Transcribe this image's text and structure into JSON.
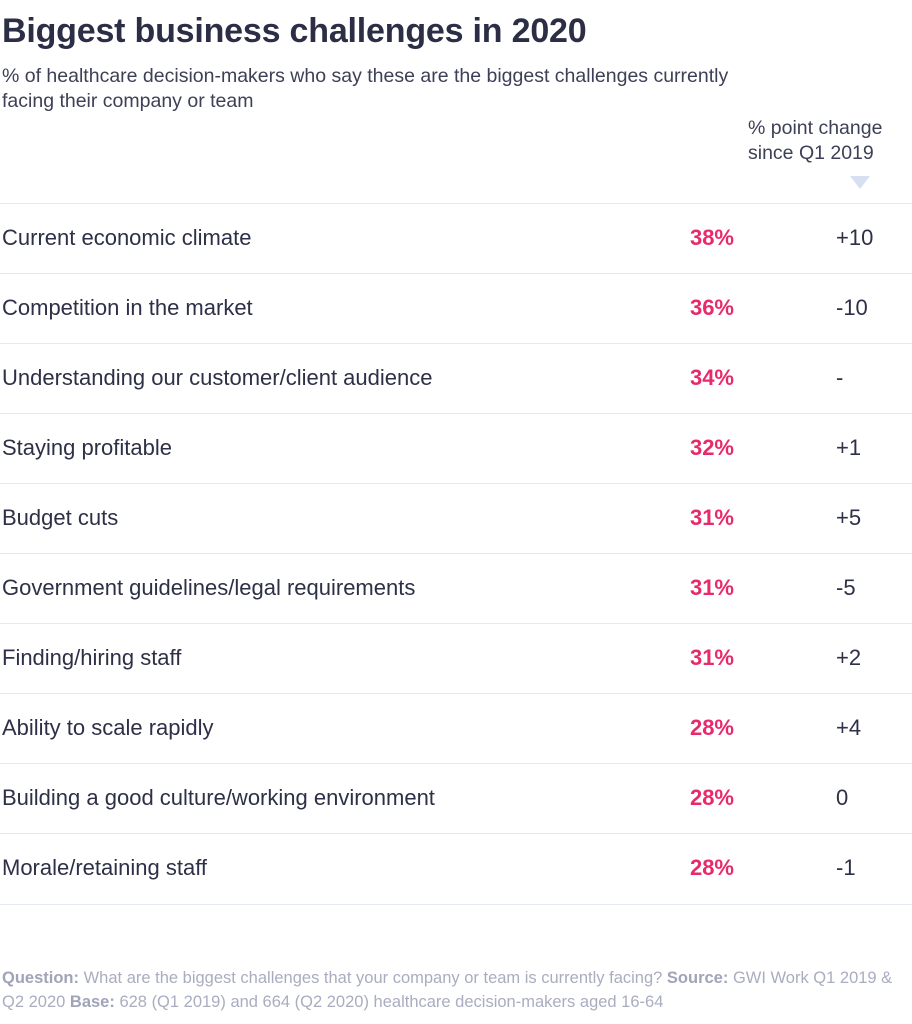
{
  "title": "Biggest business challenges in 2020",
  "subtitle": "% of healthcare decision-makers who say these are the biggest challenges currently facing their company or team",
  "change_header": "% point change since Q1 2019",
  "colors": {
    "value": "#e8296b",
    "text": "#2d3046",
    "divider": "#e4e8f2",
    "muted": "#a9adbf"
  },
  "chart_data": {
    "type": "table",
    "title": "Biggest business challenges in 2020",
    "columns": [
      "",
      "",
      "% point change since Q1 2019"
    ],
    "rows": [
      {
        "label": "Current economic climate",
        "value": "38%",
        "change": "+10"
      },
      {
        "label": "Competition in the market",
        "value": "36%",
        "change": "-10"
      },
      {
        "label": "Understanding our customer/client audience",
        "value": "34%",
        "change": "-"
      },
      {
        "label": "Staying profitable",
        "value": "32%",
        "change": "+1"
      },
      {
        "label": "Budget cuts",
        "value": "31%",
        "change": "+5"
      },
      {
        "label": "Government guidelines/legal requirements",
        "value": "31%",
        "change": "-5"
      },
      {
        "label": "Finding/hiring staff",
        "value": "31%",
        "change": "+2"
      },
      {
        "label": "Ability to scale rapidly",
        "value": "28%",
        "change": "+4"
      },
      {
        "label": "Building a good culture/working environment",
        "value": "28%",
        "change": "0"
      },
      {
        "label": "Morale/retaining staff",
        "value": "28%",
        "change": "-1"
      }
    ]
  },
  "footer": {
    "question_label": "Question:",
    "question_text": "What are the biggest challenges that your company or team is currently facing?",
    "source_label": "Source:",
    "source_text": "GWI Work Q1 2019 & Q2 2020",
    "base_label": "Base:",
    "base_text": "628 (Q1 2019) and 664 (Q2 2020) healthcare decision-makers aged 16-64"
  }
}
